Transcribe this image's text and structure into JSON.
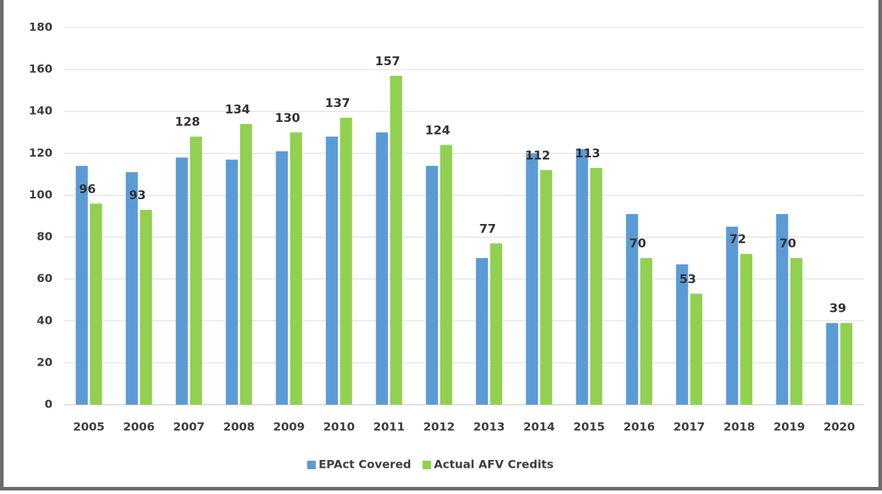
{
  "chart_data": {
    "type": "bar",
    "categories": [
      "2005",
      "2006",
      "2007",
      "2008",
      "2009",
      "2010",
      "2011",
      "2012",
      "2013",
      "2014",
      "2015",
      "2016",
      "2017",
      "2018",
      "2019",
      "2020"
    ],
    "series": [
      {
        "name": "EPAct Covered",
        "color": "#5b9bd5",
        "values": [
          114,
          111,
          118,
          117,
          121,
          128,
          130,
          114,
          70,
          120,
          122,
          91,
          67,
          85,
          91,
          39
        ]
      },
      {
        "name": "Actual AFV Credits",
        "color": "#92d050",
        "show_values": true,
        "values": [
          96,
          93,
          128,
          134,
          130,
          137,
          157,
          124,
          77,
          112,
          113,
          70,
          53,
          72,
          70,
          39
        ]
      }
    ],
    "ylim": [
      0,
      180
    ],
    "yticks": [
      0,
      20,
      40,
      60,
      80,
      100,
      120,
      140,
      160,
      180
    ],
    "grid": true,
    "legend": "bottom"
  }
}
